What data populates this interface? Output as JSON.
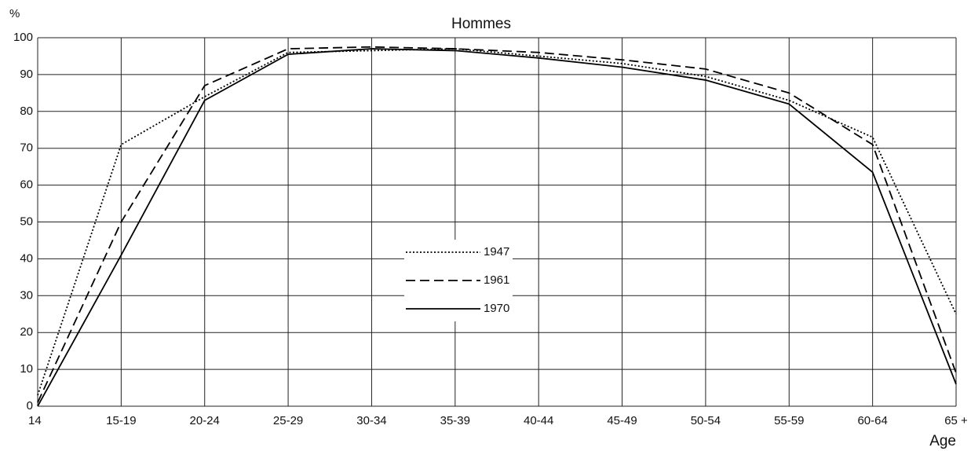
{
  "chart_data": {
    "type": "line",
    "title": "Hommes",
    "y_label": "%",
    "x_label": "Age",
    "categories": [
      "14",
      "15-19",
      "20-24",
      "25-29",
      "30-34",
      "35-39",
      "40-44",
      "45-49",
      "50-54",
      "55-59",
      "60-64",
      "65 +"
    ],
    "series": [
      {
        "name": "1947",
        "color": "#000000",
        "style": "dotted",
        "values": [
          3,
          71,
          84,
          96,
          96.5,
          97,
          95,
          93,
          89.5,
          83,
          73,
          25
        ]
      },
      {
        "name": "1961",
        "color": "#000000",
        "style": "dashed",
        "values": [
          1,
          50,
          87,
          97,
          97.5,
          97,
          96,
          94,
          91.5,
          85,
          71,
          9
        ]
      },
      {
        "name": "1970",
        "color": "#000000",
        "style": "solid",
        "values": [
          0,
          41,
          83,
          95.5,
          97,
          96.5,
          94.5,
          92,
          88.5,
          82,
          63.5,
          6
        ]
      }
    ],
    "ylim": [
      0,
      100
    ],
    "yticks": [
      0,
      10,
      20,
      30,
      40,
      50,
      60,
      70,
      80,
      90,
      100
    ],
    "grid": true
  }
}
